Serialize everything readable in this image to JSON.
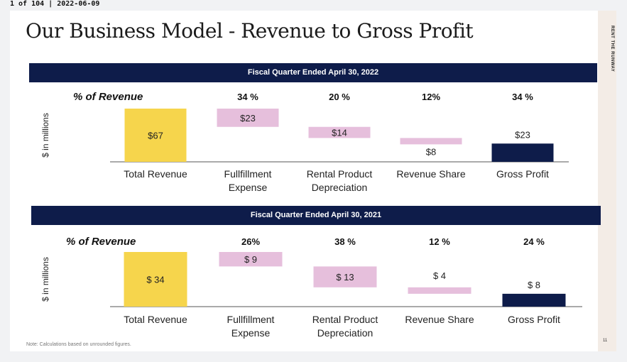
{
  "page_header": {
    "text": "1 of 104 | 2022-06-09"
  },
  "slide": {
    "title": "Our Business Model - Revenue to Gross Profit",
    "brand": "RENT THE RUNWAY",
    "page_number": "11",
    "note": "Note: Calculations based on unrounded figures."
  },
  "colors": {
    "navy": "#0e1c4a",
    "yellow": "#f6d54c",
    "pink": "#e6bfdc"
  },
  "chart_data": [
    {
      "type": "bar",
      "subtype": "waterfall",
      "title": "Fiscal Quarter Ended April 30, 2022",
      "ylabel": "$ in millions",
      "pct_header": "% of Revenue",
      "categories": [
        [
          "Total Revenue"
        ],
        [
          "Fullfillment",
          "Expense"
        ],
        [
          "Rental Product",
          "Depreciation"
        ],
        [
          "Revenue Share"
        ],
        [
          "Gross Profit"
        ]
      ],
      "values": [
        67,
        23,
        14,
        8,
        23
      ],
      "value_labels": [
        "$67",
        "$23",
        "$14",
        "$8",
        "$23"
      ],
      "pct_labels": [
        "",
        "34 %",
        "20 %",
        "12%",
        "34 %"
      ],
      "ylim": [
        0,
        67
      ]
    },
    {
      "type": "bar",
      "subtype": "waterfall",
      "title": "Fiscal Quarter Ended April 30, 2021",
      "ylabel": "$ in millions",
      "pct_header": "% of Revenue",
      "categories": [
        [
          "Total Revenue"
        ],
        [
          "Fullfillment",
          "Expense"
        ],
        [
          "Rental Product",
          "Depreciation"
        ],
        [
          "Revenue Share"
        ],
        [
          "Gross Profit"
        ]
      ],
      "values": [
        34,
        9,
        13,
        4,
        8
      ],
      "value_labels": [
        "$ 34",
        "$ 9",
        "$ 13",
        "$ 4",
        "$ 8"
      ],
      "pct_labels": [
        "",
        "26%",
        "38 %",
        "12 %",
        "24 %"
      ],
      "ylim": [
        0,
        34
      ]
    }
  ]
}
